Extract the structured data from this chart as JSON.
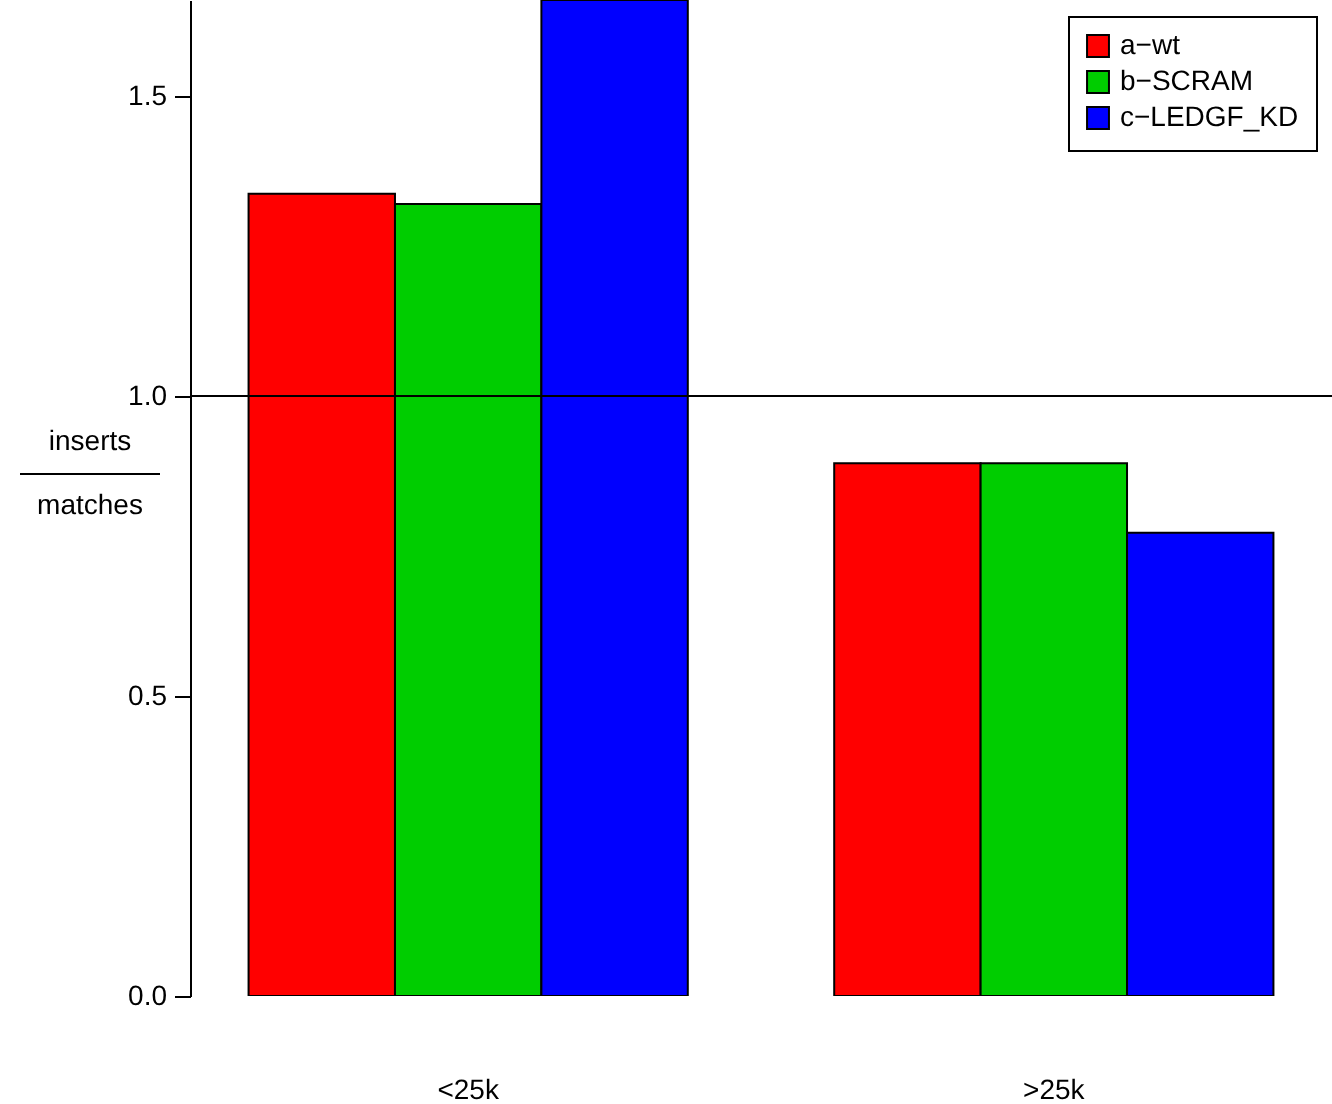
{
  "chart_data": {
    "type": "bar",
    "categories": [
      "<25k",
      ">25k"
    ],
    "series": [
      {
        "name": "a−wt",
        "color": "#ff0000",
        "values": [
          1.337,
          0.888
        ]
      },
      {
        "name": "b−SCRAM",
        "color": "#00cd00",
        "values": [
          1.32,
          0.888
        ]
      },
      {
        "name": "c−LEDGF_KD",
        "color": "#0000ff",
        "values": [
          1.66,
          0.772
        ]
      }
    ],
    "ylabel": "inserts\nmatches",
    "ylim": [
      0,
      1.66
    ],
    "yticks": [
      {
        "value": 0,
        "label": "0.0"
      },
      {
        "value": 0.5,
        "label": "0.5"
      },
      {
        "value": 1,
        "label": "1.0"
      },
      {
        "value": 1.5,
        "label": "1.5"
      }
    ],
    "ref_lines": [
      {
        "axis": "y",
        "value": 1.0,
        "color": "#000000"
      }
    ],
    "grid": false,
    "legend": "top right"
  }
}
